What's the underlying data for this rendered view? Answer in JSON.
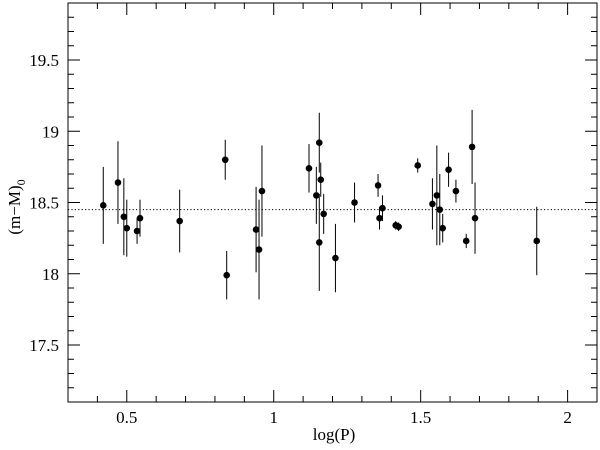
{
  "chart_data": {
    "type": "scatter",
    "title": "",
    "xlabel": "log(P)",
    "ylabel": "(m−M)",
    "ylabel_subscript": "0",
    "xlim": [
      0.3,
      2.1
    ],
    "ylim": [
      17.1,
      19.9
    ],
    "x_ticks": [
      0.5,
      1,
      1.5,
      2
    ],
    "x_tick_labels": [
      "0.5",
      "1",
      "1.5",
      "2"
    ],
    "y_ticks": [
      17.5,
      18,
      18.5,
      19,
      19.5
    ],
    "y_tick_labels": [
      "17.5",
      "18",
      "18.5",
      "19",
      "19.5"
    ],
    "reference_line": {
      "y": 18.45,
      "style": "dotted"
    },
    "error_bars": true,
    "grid": false,
    "legend": "none",
    "colors": {
      "points": "#000000",
      "axes": "#000000"
    },
    "points": [
      {
        "x": 0.42,
        "y": 18.48,
        "yerr": 0.27
      },
      {
        "x": 0.47,
        "y": 18.64,
        "yerr": 0.29
      },
      {
        "x": 0.49,
        "y": 18.4,
        "yerr": 0.27
      },
      {
        "x": 0.5,
        "y": 18.32,
        "yerr": 0.2
      },
      {
        "x": 0.535,
        "y": 18.3,
        "yerr": 0.09
      },
      {
        "x": 0.545,
        "y": 18.39,
        "yerr": 0.13
      },
      {
        "x": 0.68,
        "y": 18.37,
        "yerr": 0.22
      },
      {
        "x": 0.835,
        "y": 18.8,
        "yerr": 0.14
      },
      {
        "x": 0.84,
        "y": 17.99,
        "yerr": 0.17
      },
      {
        "x": 0.94,
        "y": 18.31,
        "yerr": 0.3
      },
      {
        "x": 0.95,
        "y": 18.17,
        "yerr": 0.35
      },
      {
        "x": 0.96,
        "y": 18.58,
        "yerr": 0.32
      },
      {
        "x": 1.12,
        "y": 18.74,
        "yerr": 0.17
      },
      {
        "x": 1.145,
        "y": 18.55,
        "yerr": 0.2
      },
      {
        "x": 1.155,
        "y": 18.92,
        "yerr": 0.21
      },
      {
        "x": 1.155,
        "y": 18.22,
        "yerr": 0.34
      },
      {
        "x": 1.16,
        "y": 18.66,
        "yerr": 0.12
      },
      {
        "x": 1.17,
        "y": 18.42,
        "yerr": 0.14
      },
      {
        "x": 1.21,
        "y": 18.11,
        "yerr": 0.24
      },
      {
        "x": 1.275,
        "y": 18.5,
        "yerr": 0.14
      },
      {
        "x": 1.355,
        "y": 18.62,
        "yerr": 0.08
      },
      {
        "x": 1.36,
        "y": 18.39,
        "yerr": 0.08
      },
      {
        "x": 1.37,
        "y": 18.46,
        "yerr": 0.09
      },
      {
        "x": 1.415,
        "y": 18.34,
        "yerr": 0.03
      },
      {
        "x": 1.425,
        "y": 18.33,
        "yerr": 0.03
      },
      {
        "x": 1.49,
        "y": 18.76,
        "yerr": 0.05
      },
      {
        "x": 1.54,
        "y": 18.49,
        "yerr": 0.18
      },
      {
        "x": 1.555,
        "y": 18.55,
        "yerr": 0.35
      },
      {
        "x": 1.565,
        "y": 18.45,
        "yerr": 0.25
      },
      {
        "x": 1.575,
        "y": 18.32,
        "yerr": 0.1
      },
      {
        "x": 1.595,
        "y": 18.73,
        "yerr": 0.12
      },
      {
        "x": 1.62,
        "y": 18.58,
        "yerr": 0.08
      },
      {
        "x": 1.655,
        "y": 18.23,
        "yerr": 0.05
      },
      {
        "x": 1.675,
        "y": 18.89,
        "yerr": 0.26
      },
      {
        "x": 1.685,
        "y": 18.39,
        "yerr": 0.25
      },
      {
        "x": 1.895,
        "y": 18.23,
        "yerr": 0.24
      }
    ]
  }
}
